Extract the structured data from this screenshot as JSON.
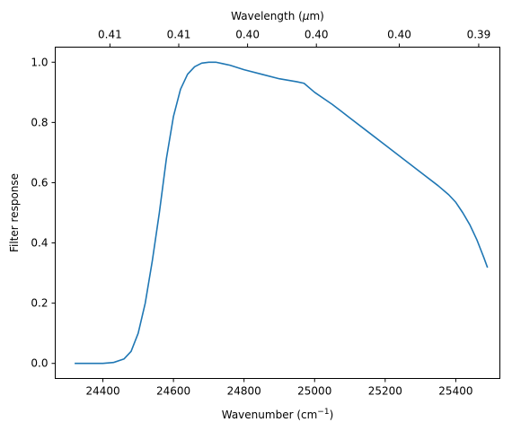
{
  "chart_data": {
    "type": "line",
    "title": "",
    "xlabel_main": "Wavenumber (cm",
    "xlabel_sup": "−1",
    "xlabel_end": ")",
    "ylabel": "Filter response",
    "top_xlabel_main": "Wavelength (",
    "top_xlabel_mu": "μ",
    "top_xlabel_end": "m)",
    "xlim": [
      24265,
      25525
    ],
    "ylim": [
      -0.05,
      1.05
    ],
    "grid": false,
    "line_color": "#1f77b4",
    "x_ticks": [
      24400,
      24600,
      24800,
      25000,
      25200,
      25400
    ],
    "x_tick_labels": [
      "24400",
      "24600",
      "24800",
      "25000",
      "25200",
      "25400"
    ],
    "y_ticks": [
      0.0,
      0.2,
      0.4,
      0.6,
      0.8,
      1.0
    ],
    "y_tick_labels": [
      "0.0",
      "0.2",
      "0.4",
      "0.6",
      "0.8",
      "1.0"
    ],
    "top_ticks": [
      24420,
      24615,
      24810,
      25005,
      25240,
      25465
    ],
    "top_tick_labels": [
      "0.41",
      "0.41",
      "0.40",
      "0.40",
      "0.40",
      "0.39"
    ],
    "series": [
      {
        "x": [
          24320,
          24350,
          24400,
          24430,
          24460,
          24480,
          24500,
          24520,
          24540,
          24560,
          24580,
          24600,
          24620,
          24640,
          24660,
          24680,
          24700,
          24720,
          24740,
          24760,
          24800,
          24850,
          24900,
          24950,
          24970,
          25000,
          25050,
          25100,
          25150,
          25200,
          25250,
          25300,
          25350,
          25380,
          25400,
          25420,
          25440,
          25460,
          25470,
          25480,
          25490
        ],
        "y": [
          0.0,
          0.0,
          0.0,
          0.003,
          0.015,
          0.04,
          0.1,
          0.2,
          0.34,
          0.5,
          0.68,
          0.82,
          0.91,
          0.96,
          0.985,
          0.997,
          1.0,
          1.0,
          0.995,
          0.99,
          0.975,
          0.96,
          0.945,
          0.935,
          0.93,
          0.9,
          0.86,
          0.815,
          0.77,
          0.725,
          0.68,
          0.635,
          0.59,
          0.56,
          0.535,
          0.5,
          0.46,
          0.41,
          0.38,
          0.35,
          0.318
        ]
      }
    ]
  }
}
